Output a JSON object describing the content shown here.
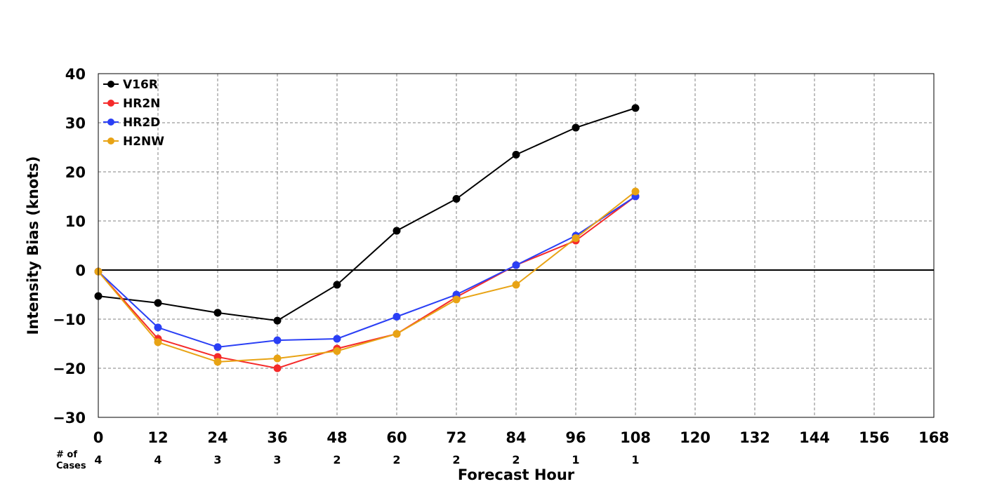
{
  "chart_data": {
    "type": "line",
    "xlabel": "Forecast Hour",
    "ylabel": "Intensity Bias (knots)",
    "xlim": [
      0,
      168
    ],
    "ylim": [
      -30,
      40
    ],
    "x_ticks": [
      0,
      12,
      24,
      36,
      48,
      60,
      72,
      84,
      96,
      108,
      120,
      132,
      144,
      156,
      168
    ],
    "y_ticks": [
      -30,
      -20,
      -10,
      0,
      10,
      20,
      30,
      40
    ],
    "y_tick_labels": [
      "−30",
      "−20",
      "−10",
      "0",
      "10",
      "20",
      "30",
      "40"
    ],
    "grid": true,
    "legend_position": "top-left",
    "x": [
      0,
      12,
      24,
      36,
      48,
      60,
      72,
      84,
      96,
      108
    ],
    "series": [
      {
        "name": "V16R",
        "color": "#000000",
        "values": [
          -5.3,
          -6.7,
          -8.7,
          -10.3,
          -3,
          8,
          14.5,
          23.5,
          29,
          33
        ]
      },
      {
        "name": "HR2N",
        "color": "#f52a2a",
        "values": [
          -0.3,
          -14,
          -17.7,
          -20,
          -16,
          -13,
          -5.5,
          1,
          6,
          15
        ]
      },
      {
        "name": "HR2D",
        "color": "#2a3ff5",
        "values": [
          -0.3,
          -11.7,
          -15.7,
          -14.3,
          -14,
          -9.5,
          -5,
          1,
          7,
          15
        ]
      },
      {
        "name": "H2NW",
        "color": "#e8a314",
        "values": [
          -0.3,
          -14.7,
          -18.7,
          -18,
          -16.5,
          -13,
          -6,
          -3,
          6.5,
          16
        ]
      }
    ],
    "cases": {
      "label_line1": "# of",
      "label_line2": "Cases",
      "values": [
        "4",
        "4",
        "3",
        "3",
        "2",
        "2",
        "2",
        "2",
        "1",
        "1"
      ]
    }
  }
}
